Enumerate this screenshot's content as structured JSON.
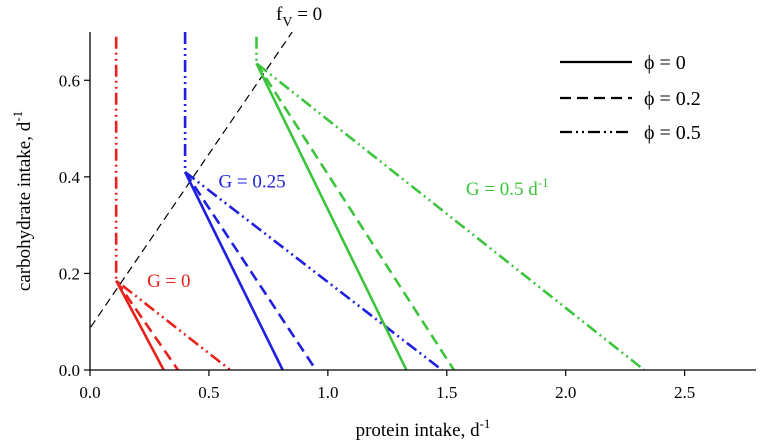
{
  "chart_data": {
    "type": "line",
    "xlabel": "protein intake, d",
    "xlabel_sup": "-1",
    "ylabel": "carbohydrate intake, d",
    "ylabel_sup": "-1",
    "xlim": [
      0,
      2.8
    ],
    "ylim": [
      0,
      0.7
    ],
    "x_ticks": [
      0,
      0.5,
      1,
      1.5,
      2,
      2.5
    ],
    "x_tick_labels": [
      "0.0",
      "0.5",
      "1.0",
      "1.5",
      "2.0",
      "2.5"
    ],
    "y_ticks": [
      0,
      0.2,
      0.4,
      0.6
    ],
    "y_tick_labels": [
      "0.0",
      "0.2",
      "0.4",
      "0.6"
    ],
    "grid": false,
    "legend_position": "top-right",
    "colors": {
      "G0": "#e8211c",
      "G025": "#1f1fe0",
      "G05": "#3cc43c",
      "reference": "#000000"
    },
    "legend": [
      {
        "label": "ϕ = 0",
        "style": "solid"
      },
      {
        "label": "ϕ = 0.2",
        "style": "dashed"
      },
      {
        "label": "ϕ = 0.5",
        "style": "dashdotdot"
      }
    ],
    "reference_line": {
      "label_base": "f",
      "label_sub": "V",
      "label_rest": " = 0",
      "x": [
        -0.12,
        0.85
      ],
      "y": [
        0.0,
        0.7
      ]
    },
    "annotations": [
      {
        "id": "g0",
        "text": "G = 0",
        "sup": "",
        "color_key": "G0",
        "x": 0.24,
        "y": 0.172
      },
      {
        "id": "g025",
        "text": "G = 0.25",
        "sup": "",
        "color_key": "G025",
        "x": 0.54,
        "y": 0.378
      },
      {
        "id": "g05",
        "text": "G = 0.5 d",
        "sup": "-1",
        "color_key": "G05",
        "x": 1.58,
        "y": 0.362
      }
    ],
    "series": [
      {
        "group": "G0",
        "style": "solid",
        "x": [
          0.11,
          0.31
        ],
        "y": [
          0.185,
          0.0
        ]
      },
      {
        "group": "G0",
        "style": "dashed",
        "x": [
          0.11,
          0.37
        ],
        "y": [
          0.185,
          0.0
        ]
      },
      {
        "group": "G0",
        "style": "dashdotdot",
        "x": [
          0.11,
          0.11,
          0.59
        ],
        "y": [
          0.69,
          0.185,
          0.0
        ]
      },
      {
        "group": "G025",
        "style": "solid",
        "x": [
          0.4,
          0.81
        ],
        "y": [
          0.41,
          0.0
        ]
      },
      {
        "group": "G025",
        "style": "dashed",
        "x": [
          0.4,
          0.95
        ],
        "y": [
          0.41,
          0.0
        ]
      },
      {
        "group": "G025",
        "style": "dashdotdot",
        "x": [
          0.4,
          0.4,
          1.48
        ],
        "y": [
          0.7,
          0.41,
          0.0
        ]
      },
      {
        "group": "G05",
        "style": "solid",
        "x": [
          0.7,
          1.33
        ],
        "y": [
          0.635,
          0.0
        ]
      },
      {
        "group": "G05",
        "style": "dashed",
        "x": [
          0.7,
          1.53
        ],
        "y": [
          0.635,
          0.0
        ]
      },
      {
        "group": "G05",
        "style": "dashdotdot",
        "x": [
          0.7,
          0.7,
          2.33
        ],
        "y": [
          0.69,
          0.635,
          0.0
        ]
      }
    ]
  }
}
